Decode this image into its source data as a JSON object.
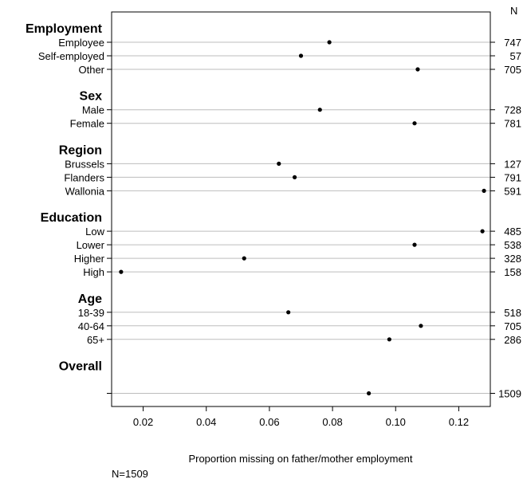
{
  "chart_data": {
    "type": "scatter",
    "style": "dot-plot",
    "xlabel": "Proportion missing on father/mother employment",
    "ylabel": "",
    "n_header": "N",
    "note": "N=1509",
    "xlim": [
      0.01,
      0.13
    ],
    "xticks": [
      "0.02",
      "0.04",
      "0.06",
      "0.08",
      "0.10",
      "0.12"
    ],
    "grid": "horizontal",
    "groups": [
      {
        "name": "Employment",
        "items": [
          {
            "label": "Employee",
            "value": 0.079,
            "n": "747"
          },
          {
            "label": "Self-employed",
            "value": 0.07,
            "n": "57"
          },
          {
            "label": "Other",
            "value": 0.107,
            "n": "705"
          }
        ]
      },
      {
        "name": "Sex",
        "items": [
          {
            "label": "Male",
            "value": 0.076,
            "n": "728"
          },
          {
            "label": "Female",
            "value": 0.106,
            "n": "781"
          }
        ]
      },
      {
        "name": "Region",
        "items": [
          {
            "label": "Brussels",
            "value": 0.063,
            "n": "127"
          },
          {
            "label": "Flanders",
            "value": 0.068,
            "n": "791"
          },
          {
            "label": "Wallonia",
            "value": 0.128,
            "n": "591"
          }
        ]
      },
      {
        "name": "Education",
        "items": [
          {
            "label": "Low",
            "value": 0.1275,
            "n": "485"
          },
          {
            "label": "Lower",
            "value": 0.106,
            "n": "538"
          },
          {
            "label": "Higher",
            "value": 0.052,
            "n": "328"
          },
          {
            "label": "High",
            "value": 0.013,
            "n": "158"
          }
        ]
      },
      {
        "name": "Age",
        "items": [
          {
            "label": "18-39",
            "value": 0.066,
            "n": "518"
          },
          {
            "label": "40-64",
            "value": 0.108,
            "n": "705"
          },
          {
            "label": "65+",
            "value": 0.098,
            "n": "286"
          }
        ]
      },
      {
        "name": "Overall",
        "items": [
          {
            "label": "",
            "value": 0.0915,
            "n": "1509"
          }
        ]
      }
    ]
  }
}
